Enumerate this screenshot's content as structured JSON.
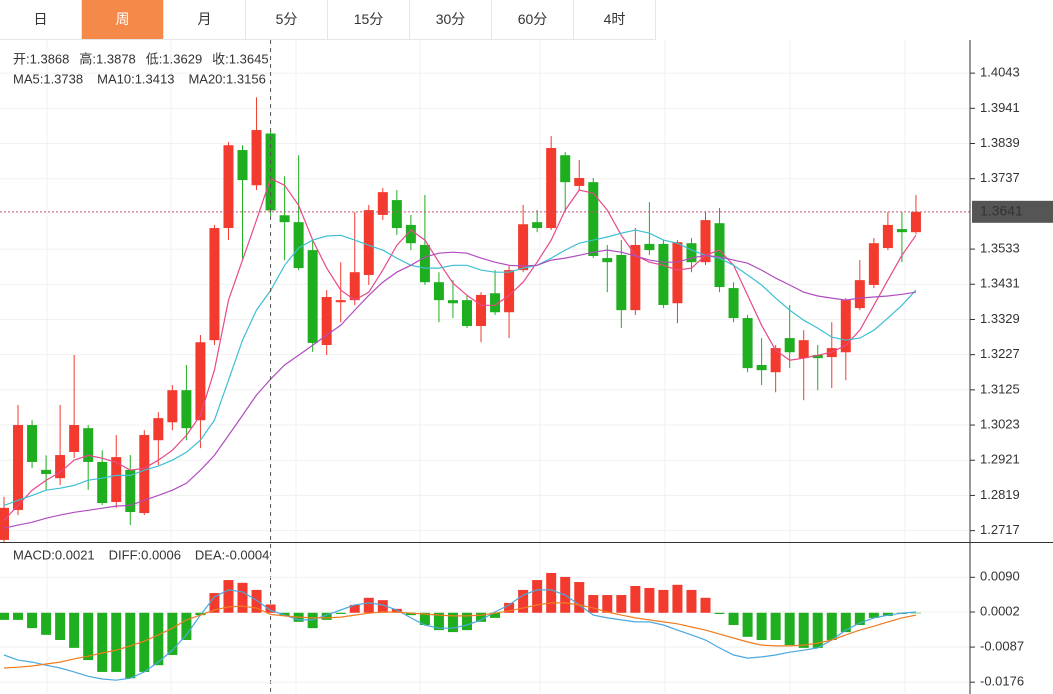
{
  "tabs": [
    "日",
    "周",
    "月",
    "5分",
    "15分",
    "30分",
    "60分",
    "4时"
  ],
  "chart_data": [
    {
      "type": "candlestick",
      "legend": [
        {
          "label": "开:",
          "value": 1.3868
        },
        {
          "label": "高:",
          "value": 1.3878
        },
        {
          "label": "低:",
          "value": 1.3629
        },
        {
          "label": "收:",
          "value": 1.3645
        }
      ],
      "open": [
        1.269,
        1.2777,
        1.3023,
        1.2893,
        1.2869,
        1.2945,
        1.3014,
        1.2916,
        1.28,
        1.2893,
        1.2768,
        1.2979,
        1.3031,
        1.3124,
        1.3037,
        1.3269,
        1.3594,
        1.382,
        1.3718,
        1.3868,
        1.3631,
        1.3611,
        1.353,
        1.3255,
        1.3379,
        1.3385,
        1.3458,
        1.3632,
        1.3675,
        1.3603,
        1.3545,
        1.3437,
        1.3385,
        1.3385,
        1.331,
        1.3405,
        1.335,
        1.3472,
        1.3611,
        1.3594,
        1.3805,
        1.3716,
        1.3727,
        1.3507,
        1.3516,
        1.3356,
        1.3548,
        1.3548,
        1.3376,
        1.355,
        1.3495,
        1.3608,
        1.342,
        1.3333,
        1.3197,
        1.3176,
        1.3275,
        1.3217,
        1.3226,
        1.322,
        1.3234,
        1.3362,
        1.3429,
        1.3536,
        1.3591,
        1.3582
      ],
      "high": [
        1.2815,
        1.3081,
        1.3037,
        1.2935,
        1.3081,
        1.3226,
        1.3023,
        1.295,
        1.2994,
        1.2936,
        1.3008,
        1.306,
        1.3139,
        1.3197,
        1.3284,
        1.3603,
        1.3843,
        1.3834,
        1.3973,
        1.3878,
        1.3744,
        1.3805,
        1.3559,
        1.3414,
        1.3495,
        1.364,
        1.3661,
        1.371,
        1.3704,
        1.3632,
        1.369,
        1.3466,
        1.3443,
        1.34,
        1.3408,
        1.3472,
        1.3487,
        1.3661,
        1.3646,
        1.3861,
        1.3814,
        1.3791,
        1.3739,
        1.3545,
        1.3559,
        1.3594,
        1.3669,
        1.3559,
        1.3559,
        1.3565,
        1.364,
        1.3652,
        1.3437,
        1.3342,
        1.3275,
        1.3255,
        1.3371,
        1.3298,
        1.3255,
        1.3321,
        1.3391,
        1.3501,
        1.3565,
        1.364,
        1.364,
        1.369
      ],
      "low": [
        1.2684,
        1.2762,
        1.2898,
        1.2835,
        1.2849,
        1.2927,
        1.2835,
        1.2791,
        1.2783,
        1.2733,
        1.2762,
        1.2907,
        1.3008,
        1.2979,
        1.2956,
        1.3255,
        1.3559,
        1.3501,
        1.3704,
        1.3629,
        1.3501,
        1.3472,
        1.3235,
        1.3226,
        1.3321,
        1.337,
        1.3429,
        1.3617,
        1.3574,
        1.353,
        1.3429,
        1.3321,
        1.3333,
        1.3304,
        1.3263,
        1.3342,
        1.3275,
        1.3466,
        1.3582,
        1.3588,
        1.364,
        1.3704,
        1.3507,
        1.3408,
        1.3304,
        1.3342,
        1.3516,
        1.3362,
        1.3318,
        1.3466,
        1.3487,
        1.3408,
        1.3321,
        1.3176,
        1.3139,
        1.3118,
        1.3188,
        1.3095,
        1.3124,
        1.313,
        1.3153,
        1.3356,
        1.342,
        1.353,
        1.3495,
        1.3576
      ],
      "close": [
        1.2783,
        1.3023,
        1.2916,
        1.2881,
        1.2936,
        1.3023,
        1.2916,
        1.2797,
        1.293,
        1.2771,
        1.2994,
        1.3043,
        1.3124,
        1.3014,
        1.3263,
        1.3594,
        1.3834,
        1.3733,
        1.3878,
        1.3645,
        1.3611,
        1.3478,
        1.3261,
        1.3394,
        1.3385,
        1.3466,
        1.3646,
        1.3698,
        1.3594,
        1.355,
        1.3437,
        1.3385,
        1.3376,
        1.331,
        1.34,
        1.335,
        1.3472,
        1.3605,
        1.3594,
        1.3826,
        1.3727,
        1.3739,
        1.3513,
        1.3495,
        1.3356,
        1.3545,
        1.353,
        1.3371,
        1.3553,
        1.3495,
        1.3617,
        1.3423,
        1.3333,
        1.3188,
        1.3182,
        1.3246,
        1.3234,
        1.3269,
        1.3217,
        1.3246,
        1.3385,
        1.3443,
        1.355,
        1.3603,
        1.3582,
        1.3641
      ],
      "up_color": "#f23a2e",
      "down_color": "#1fae1f",
      "series": [
        {
          "name": "MA5:",
          "color": "#e8488a",
          "legend_value": 1.3738,
          "values": [
            1.2747,
            1.279,
            1.2834,
            1.2863,
            1.2886,
            1.2921,
            1.2935,
            1.2927,
            1.2915,
            1.2892,
            1.2898,
            1.2921,
            1.295,
            1.2993,
            1.3051,
            1.3182,
            1.3385,
            1.3501,
            1.3617,
            1.3738,
            1.3718,
            1.366,
            1.3559,
            1.3478,
            1.3414,
            1.3385,
            1.3408,
            1.3472,
            1.3544,
            1.3588,
            1.3559,
            1.3495,
            1.3434,
            1.3399,
            1.337,
            1.337,
            1.3399,
            1.3437,
            1.3495,
            1.3559,
            1.3646,
            1.3704,
            1.3695,
            1.3646,
            1.3573,
            1.3515,
            1.3495,
            1.3486,
            1.3472,
            1.3478,
            1.3515,
            1.353,
            1.3486,
            1.3399,
            1.3312,
            1.324,
            1.3211,
            1.3217,
            1.3225,
            1.3234,
            1.3254,
            1.3298,
            1.337,
            1.3443,
            1.3515,
            1.3573
          ]
        },
        {
          "name": "MA10:",
          "color": "#3dbfd4",
          "legend_value": 1.3413,
          "values": [
            1.279,
            1.2805,
            1.2819,
            1.2834,
            1.284,
            1.2848,
            1.2863,
            1.2869,
            1.2877,
            1.2877,
            1.2892,
            1.2904,
            1.2921,
            1.2944,
            1.2979,
            1.3037,
            1.3153,
            1.3269,
            1.3356,
            1.3413,
            1.3486,
            1.3536,
            1.3559,
            1.3571,
            1.3573,
            1.3559,
            1.3544,
            1.353,
            1.3507,
            1.3486,
            1.3478,
            1.3478,
            1.3486,
            1.3486,
            1.3472,
            1.3466,
            1.3466,
            1.3478,
            1.3486,
            1.3507,
            1.353,
            1.355,
            1.3559,
            1.3568,
            1.3579,
            1.3588,
            1.3579,
            1.3559,
            1.355,
            1.353,
            1.3515,
            1.3507,
            1.3486,
            1.3458,
            1.3429,
            1.3391,
            1.3356,
            1.3327,
            1.3304,
            1.3278,
            1.3269,
            1.3275,
            1.3298,
            1.3333,
            1.337,
            1.3414
          ]
        },
        {
          "name": "MA20:",
          "color": "#b04dbf",
          "legend_value": 1.3156,
          "values": [
            1.2724,
            1.2733,
            1.2741,
            1.2753,
            1.2762,
            1.277,
            1.2776,
            1.2782,
            1.2788,
            1.279,
            1.2805,
            1.2819,
            1.2834,
            1.2854,
            1.2892,
            1.2935,
            1.2993,
            1.3051,
            1.311,
            1.3156,
            1.3197,
            1.3225,
            1.3254,
            1.3284,
            1.3312,
            1.3356,
            1.3399,
            1.3437,
            1.3466,
            1.3486,
            1.351,
            1.3521,
            1.3524,
            1.3521,
            1.3507,
            1.3495,
            1.3486,
            1.3484,
            1.3486,
            1.3501,
            1.3507,
            1.3515,
            1.3524,
            1.353,
            1.3524,
            1.3513,
            1.3501,
            1.3495,
            1.3495,
            1.3507,
            1.3515,
            1.351,
            1.3501,
            1.3492,
            1.3472,
            1.3449,
            1.3429,
            1.3408,
            1.3397,
            1.3391,
            1.3385,
            1.3391,
            1.3394,
            1.3397,
            1.3402,
            1.3408
          ]
        }
      ],
      "last_price": 1.3641,
      "ylim": [
        1.2684,
        1.4139
      ],
      "yticks": [
        1.4043,
        1.3941,
        1.3839,
        1.3737,
        1.3533,
        1.3431,
        1.3329,
        1.3227,
        1.3125,
        1.3023,
        1.2921,
        1.2819,
        1.2717
      ],
      "grid": true
    },
    {
      "type": "macd",
      "label": "MACD:",
      "label_color": "#e0383b",
      "legend_value": 0.0021,
      "values": [
        -0.0018,
        -0.0018,
        -0.0039,
        -0.0056,
        -0.0069,
        -0.0089,
        -0.012,
        -0.015,
        -0.015,
        -0.0166,
        -0.015,
        -0.0133,
        -0.0107,
        -0.0069,
        -0.0006,
        0.005,
        0.0083,
        0.0076,
        0.0058,
        0.0021,
        -0.0008,
        -0.0023,
        -0.0039,
        -0.0018,
        -0.0003,
        0.002,
        0.0038,
        0.0032,
        0.001,
        -0.0006,
        -0.0031,
        -0.0044,
        -0.0049,
        -0.0044,
        -0.0023,
        -0.0013,
        0.0025,
        0.0058,
        0.0083,
        0.0101,
        0.0091,
        0.0078,
        0.0045,
        0.0045,
        0.0045,
        0.0068,
        0.0063,
        0.0058,
        0.0071,
        0.0058,
        0.0038,
        -0.0003,
        -0.0031,
        -0.0061,
        -0.0069,
        -0.0069,
        -0.0082,
        -0.0089,
        -0.0089,
        -0.0069,
        -0.0049,
        -0.0031,
        -0.0013,
        -0.0008,
        -0.0003,
        -0.0001
      ],
      "up_color": "#f23a2e",
      "down_color": "#1fae1f",
      "series": [
        {
          "name": "DIFF:",
          "color": "#4aa8e0",
          "legend_value": 0.0006,
          "values": [
            -0.0107,
            -0.012,
            -0.0125,
            -0.0133,
            -0.014,
            -0.015,
            -0.0161,
            -0.0168,
            -0.0171,
            -0.0166,
            -0.015,
            -0.0125,
            -0.0095,
            -0.0056,
            -0.0006,
            0.004,
            0.0058,
            0.0053,
            0.0032,
            0.0006,
            -0.0006,
            -0.0018,
            -0.0018,
            -0.0006,
            0.0007,
            0.002,
            0.0025,
            0.002,
            0.0007,
            -0.0013,
            -0.0031,
            -0.0039,
            -0.0039,
            -0.0031,
            -0.0018,
            0.0002,
            0.002,
            0.0045,
            0.0058,
            0.0058,
            0.0045,
            0.002,
            -0.0006,
            -0.0013,
            -0.0018,
            -0.0023,
            -0.0023,
            -0.0031,
            -0.0044,
            -0.0056,
            -0.0069,
            -0.0089,
            -0.0107,
            -0.0115,
            -0.0112,
            -0.0107,
            -0.01,
            -0.0095,
            -0.0089,
            -0.0069,
            -0.0044,
            -0.0026,
            -0.0013,
            -0.0006,
            -0.0001,
            0.0002
          ]
        },
        {
          "name": "DEA:",
          "color": "#f07c20",
          "legend_value": -0.0004,
          "values": [
            -0.014,
            -0.0138,
            -0.0135,
            -0.013,
            -0.0125,
            -0.0117,
            -0.011,
            -0.0102,
            -0.0095,
            -0.0084,
            -0.0072,
            -0.0056,
            -0.0039,
            -0.0018,
            -0.0006,
            0.0007,
            0.0015,
            0.0017,
            0.0012,
            -0.0004,
            -0.0008,
            -0.0011,
            -0.0013,
            -0.0013,
            -0.0011,
            -0.0006,
            -0.0001,
            0.0002,
            0.0002,
            -0.0001,
            -0.0003,
            -0.0006,
            -0.0008,
            -0.0008,
            -0.0006,
            -0.0001,
            0.0005,
            0.0012,
            0.002,
            0.0025,
            0.0025,
            0.002,
            0.0012,
            0.0002,
            -0.0006,
            -0.0013,
            -0.0018,
            -0.0023,
            -0.0028,
            -0.0036,
            -0.0044,
            -0.0054,
            -0.0064,
            -0.0074,
            -0.0082,
            -0.0084,
            -0.0084,
            -0.0082,
            -0.0077,
            -0.0069,
            -0.0056,
            -0.0044,
            -0.0034,
            -0.0023,
            -0.0013,
            -0.0006
          ]
        }
      ],
      "ylim": [
        -0.0206,
        0.0177
      ],
      "yticks": [
        {
          "value": 0.009,
          "label": "0.0090"
        },
        0.0002,
        -0.0087,
        -0.0176
      ],
      "grid": true
    }
  ]
}
